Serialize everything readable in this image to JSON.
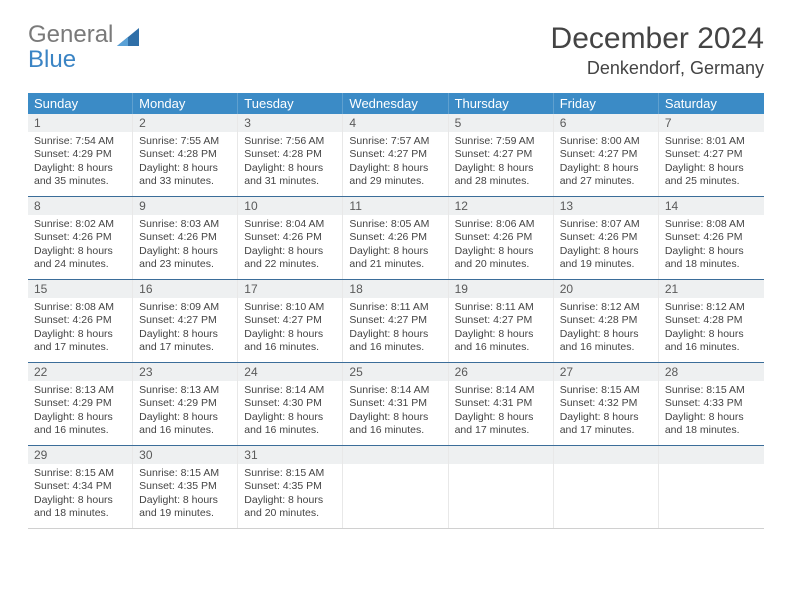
{
  "brand": {
    "line1": "General",
    "line2": "Blue"
  },
  "title": "December 2024",
  "location": "Denkendorf, Germany",
  "accent_color": "#3b8bc6",
  "header_border_color": "#3b6d99",
  "daynum_bg": "#eef0f1",
  "weekdays": [
    "Sunday",
    "Monday",
    "Tuesday",
    "Wednesday",
    "Thursday",
    "Friday",
    "Saturday"
  ],
  "weeks": [
    [
      {
        "n": "1",
        "sr": "7:54 AM",
        "ss": "4:29 PM",
        "dl": "8 hours and 35 minutes."
      },
      {
        "n": "2",
        "sr": "7:55 AM",
        "ss": "4:28 PM",
        "dl": "8 hours and 33 minutes."
      },
      {
        "n": "3",
        "sr": "7:56 AM",
        "ss": "4:28 PM",
        "dl": "8 hours and 31 minutes."
      },
      {
        "n": "4",
        "sr": "7:57 AM",
        "ss": "4:27 PM",
        "dl": "8 hours and 29 minutes."
      },
      {
        "n": "5",
        "sr": "7:59 AM",
        "ss": "4:27 PM",
        "dl": "8 hours and 28 minutes."
      },
      {
        "n": "6",
        "sr": "8:00 AM",
        "ss": "4:27 PM",
        "dl": "8 hours and 27 minutes."
      },
      {
        "n": "7",
        "sr": "8:01 AM",
        "ss": "4:27 PM",
        "dl": "8 hours and 25 minutes."
      }
    ],
    [
      {
        "n": "8",
        "sr": "8:02 AM",
        "ss": "4:26 PM",
        "dl": "8 hours and 24 minutes."
      },
      {
        "n": "9",
        "sr": "8:03 AM",
        "ss": "4:26 PM",
        "dl": "8 hours and 23 minutes."
      },
      {
        "n": "10",
        "sr": "8:04 AM",
        "ss": "4:26 PM",
        "dl": "8 hours and 22 minutes."
      },
      {
        "n": "11",
        "sr": "8:05 AM",
        "ss": "4:26 PM",
        "dl": "8 hours and 21 minutes."
      },
      {
        "n": "12",
        "sr": "8:06 AM",
        "ss": "4:26 PM",
        "dl": "8 hours and 20 minutes."
      },
      {
        "n": "13",
        "sr": "8:07 AM",
        "ss": "4:26 PM",
        "dl": "8 hours and 19 minutes."
      },
      {
        "n": "14",
        "sr": "8:08 AM",
        "ss": "4:26 PM",
        "dl": "8 hours and 18 minutes."
      }
    ],
    [
      {
        "n": "15",
        "sr": "8:08 AM",
        "ss": "4:26 PM",
        "dl": "8 hours and 17 minutes."
      },
      {
        "n": "16",
        "sr": "8:09 AM",
        "ss": "4:27 PM",
        "dl": "8 hours and 17 minutes."
      },
      {
        "n": "17",
        "sr": "8:10 AM",
        "ss": "4:27 PM",
        "dl": "8 hours and 16 minutes."
      },
      {
        "n": "18",
        "sr": "8:11 AM",
        "ss": "4:27 PM",
        "dl": "8 hours and 16 minutes."
      },
      {
        "n": "19",
        "sr": "8:11 AM",
        "ss": "4:27 PM",
        "dl": "8 hours and 16 minutes."
      },
      {
        "n": "20",
        "sr": "8:12 AM",
        "ss": "4:28 PM",
        "dl": "8 hours and 16 minutes."
      },
      {
        "n": "21",
        "sr": "8:12 AM",
        "ss": "4:28 PM",
        "dl": "8 hours and 16 minutes."
      }
    ],
    [
      {
        "n": "22",
        "sr": "8:13 AM",
        "ss": "4:29 PM",
        "dl": "8 hours and 16 minutes."
      },
      {
        "n": "23",
        "sr": "8:13 AM",
        "ss": "4:29 PM",
        "dl": "8 hours and 16 minutes."
      },
      {
        "n": "24",
        "sr": "8:14 AM",
        "ss": "4:30 PM",
        "dl": "8 hours and 16 minutes."
      },
      {
        "n": "25",
        "sr": "8:14 AM",
        "ss": "4:31 PM",
        "dl": "8 hours and 16 minutes."
      },
      {
        "n": "26",
        "sr": "8:14 AM",
        "ss": "4:31 PM",
        "dl": "8 hours and 17 minutes."
      },
      {
        "n": "27",
        "sr": "8:15 AM",
        "ss": "4:32 PM",
        "dl": "8 hours and 17 minutes."
      },
      {
        "n": "28",
        "sr": "8:15 AM",
        "ss": "4:33 PM",
        "dl": "8 hours and 18 minutes."
      }
    ],
    [
      {
        "n": "29",
        "sr": "8:15 AM",
        "ss": "4:34 PM",
        "dl": "8 hours and 18 minutes."
      },
      {
        "n": "30",
        "sr": "8:15 AM",
        "ss": "4:35 PM",
        "dl": "8 hours and 19 minutes."
      },
      {
        "n": "31",
        "sr": "8:15 AM",
        "ss": "4:35 PM",
        "dl": "8 hours and 20 minutes."
      },
      null,
      null,
      null,
      null
    ]
  ],
  "labels": {
    "sunrise": "Sunrise:",
    "sunset": "Sunset:",
    "daylight": "Daylight:"
  }
}
